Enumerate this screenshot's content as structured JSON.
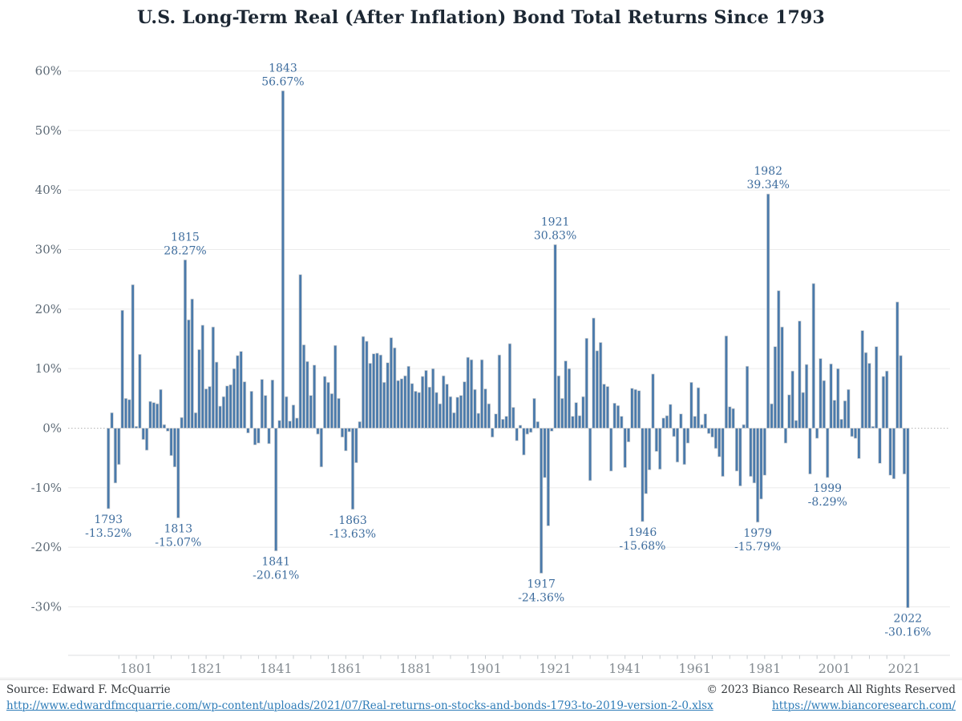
{
  "title_note": "single bar chart page",
  "colors": {
    "bar_fill": "#4a7aab",
    "bar_stroke": "#d3d3d3",
    "annotation_text": "#3e6d9e",
    "grid_line": "#ebebeb",
    "zero_line": "#b5b5b5",
    "axis_tick": "#c9ced2",
    "y_label": "#5d6a76",
    "x_label": "#858c92",
    "title_text": "#1c2733"
  },
  "footer": {
    "source_label": "Source: Edward F. McQuarrie",
    "source_url": "http://www.edwardfmcquarrie.com/wp-content/uploads/2021/07/Real-returns-on-stocks-and-bonds-1793-to-2019-version-2-0.xlsx",
    "copyright": "© 2023 Bianco Research All Rights Reserved",
    "site_url": "https://www.biancoresearch.com/"
  },
  "chart_data": {
    "type": "bar",
    "title": "U.S. Long-Term Real (After Inflation) Bond Total Returns Since 1793",
    "xlabel": "",
    "ylabel": "",
    "grid": true,
    "legend": "none",
    "start_year": 1793,
    "end_year": 2022,
    "ylim": [
      -35,
      62
    ],
    "y_tick_values": [
      60,
      50,
      40,
      30,
      20,
      10,
      0,
      -10,
      -20,
      -30
    ],
    "y_tick_labels": [
      "60%",
      "50%",
      "40%",
      "30%",
      "20%",
      "10%",
      "0%",
      "-10%",
      "-20%",
      "-30%"
    ],
    "x_tick_labels": [
      1801,
      1821,
      1841,
      1861,
      1881,
      1901,
      1921,
      1941,
      1961,
      1981,
      2001,
      2021
    ],
    "values": [
      -13.52,
      2.6,
      -9.2,
      -6.1,
      19.8,
      5.0,
      4.8,
      24.1,
      0.3,
      12.4,
      -1.9,
      -3.7,
      4.5,
      4.3,
      4.1,
      6.5,
      0.6,
      -0.5,
      -4.6,
      -6.5,
      -15.07,
      1.8,
      28.27,
      18.2,
      21.7,
      2.6,
      13.2,
      17.3,
      6.6,
      7.0,
      17.0,
      11.1,
      3.7,
      5.3,
      7.1,
      7.3,
      10.0,
      12.2,
      12.9,
      7.8,
      -0.8,
      6.2,
      -2.8,
      -2.5,
      8.2,
      5.5,
      -2.6,
      8.1,
      -20.61,
      1.3,
      56.67,
      5.3,
      1.2,
      3.9,
      1.7,
      25.8,
      14.0,
      11.2,
      5.5,
      10.6,
      -1.0,
      -6.5,
      8.7,
      7.7,
      5.8,
      13.9,
      5.0,
      -1.5,
      -3.8,
      -0.6,
      -13.63,
      -5.8,
      1.1,
      15.4,
      14.6,
      10.9,
      12.5,
      12.6,
      12.3,
      7.7,
      11.0,
      15.2,
      13.5,
      8.0,
      8.3,
      8.8,
      10.4,
      7.5,
      6.2,
      6.0,
      8.7,
      9.7,
      6.9,
      10.0,
      6.0,
      4.1,
      8.8,
      7.4,
      5.3,
      2.6,
      5.2,
      5.5,
      7.8,
      11.9,
      11.5,
      6.5,
      2.5,
      11.5,
      6.6,
      4.1,
      -1.5,
      2.4,
      12.3,
      1.5,
      2.0,
      14.2,
      3.5,
      -2.1,
      0.5,
      -4.5,
      -1.0,
      -0.7,
      5.0,
      1.1,
      -24.36,
      -8.3,
      -16.4,
      -0.5,
      30.83,
      8.8,
      5.0,
      11.3,
      10.0,
      2.0,
      4.3,
      2.1,
      5.3,
      15.1,
      -8.8,
      18.5,
      13.0,
      14.4,
      7.4,
      7.0,
      -7.2,
      4.2,
      3.8,
      2.0,
      -6.6,
      -2.3,
      6.7,
      6.5,
      6.3,
      -15.68,
      -11.0,
      -7.0,
      9.1,
      -3.9,
      -6.9,
      1.7,
      2.1,
      4.0,
      -1.4,
      -5.7,
      2.4,
      -6.1,
      -2.5,
      7.7,
      2.0,
      6.8,
      0.6,
      2.4,
      -0.9,
      -1.5,
      -3.4,
      -4.8,
      -8.1,
      15.5,
      3.6,
      3.3,
      -7.2,
      -9.7,
      0.6,
      10.4,
      -8.1,
      -9.2,
      -15.79,
      -11.9,
      -7.9,
      39.34,
      4.1,
      13.7,
      23.1,
      17.0,
      -2.5,
      5.6,
      9.6,
      1.3,
      18.0,
      6.0,
      10.7,
      -7.7,
      24.3,
      -1.7,
      11.7,
      8.0,
      -8.29,
      10.8,
      4.7,
      10.0,
      1.5,
      4.6,
      6.5,
      -1.4,
      -1.7,
      -5.1,
      16.4,
      12.7,
      10.9,
      0.3,
      13.7,
      -5.9,
      8.7,
      9.6,
      -7.9,
      -8.5,
      21.2,
      12.2,
      -7.7,
      -30.16
    ],
    "annotations": [
      {
        "year": 1793,
        "label": "-13.52%",
        "position": "below"
      },
      {
        "year": 1813,
        "label": "-15.07%",
        "position": "below"
      },
      {
        "year": 1815,
        "label": "28.27%",
        "position": "above"
      },
      {
        "year": 1841,
        "label": "-20.61%",
        "position": "below"
      },
      {
        "year": 1843,
        "label": "56.67%",
        "position": "above"
      },
      {
        "year": 1863,
        "label": "-13.63%",
        "position": "below"
      },
      {
        "year": 1917,
        "label": "-24.36%",
        "position": "below"
      },
      {
        "year": 1921,
        "label": "30.83%",
        "position": "above"
      },
      {
        "year": 1946,
        "label": "-15.68%",
        "position": "below"
      },
      {
        "year": 1979,
        "label": "-15.79%",
        "position": "below"
      },
      {
        "year": 1982,
        "label": "39.34%",
        "position": "above"
      },
      {
        "year": 1999,
        "label": "-8.29%",
        "position": "below"
      },
      {
        "year": 2022,
        "label": "-30.16%",
        "position": "below"
      }
    ]
  }
}
